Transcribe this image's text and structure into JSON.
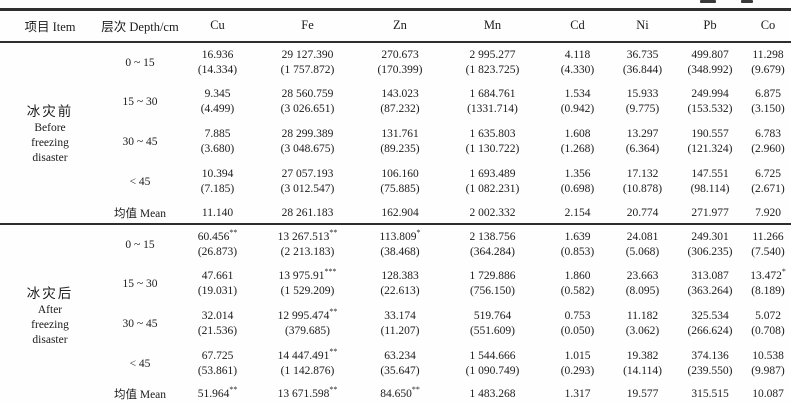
{
  "table": {
    "columns": [
      "项目 Item",
      "层次 Depth/cm",
      "Cu",
      "Fe",
      "Zn",
      "Mn",
      "Cd",
      "Ni",
      "Pb",
      "Co"
    ],
    "groups": [
      {
        "name": [
          "冰灾前",
          "Before",
          "freezing",
          "disaster"
        ],
        "rows": [
          {
            "depth": "0 ~ 15",
            "values": [
              "16.936",
              "29 127.390",
              "270.673",
              "2 995.277",
              "4.118",
              "36.735",
              "499.807",
              "11.298"
            ],
            "sd": [
              "(14.334)",
              "(1 757.872)",
              "(170.399)",
              "(1 823.725)",
              "(4.330)",
              "(36.844)",
              "(348.992)",
              "(9.679)"
            ]
          },
          {
            "depth": "15 ~ 30",
            "values": [
              "9.345",
              "28 560.759",
              "143.023",
              "1 684.761",
              "1.534",
              "15.933",
              "249.994",
              "6.875"
            ],
            "sd": [
              "(4.499)",
              "(3 026.651)",
              "(87.232)",
              "(1331.714)",
              "(0.942)",
              "(9.775)",
              "(153.532)",
              "(3.150)"
            ]
          },
          {
            "depth": "30 ~ 45",
            "values": [
              "7.885",
              "28 299.389",
              "131.761",
              "1 635.803",
              "1.608",
              "13.297",
              "190.557",
              "6.783"
            ],
            "sd": [
              "(3.680)",
              "(3 048.675)",
              "(89.235)",
              "(1 130.722)",
              "(1.268)",
              "(6.364)",
              "(121.324)",
              "(2.960)"
            ]
          },
          {
            "depth": "< 45",
            "values": [
              "10.394",
              "27 057.193",
              "106.160",
              "1 693.489",
              "1.356",
              "17.132",
              "147.551",
              "6.725"
            ],
            "sd": [
              "(7.185)",
              "(3 012.547)",
              "(75.885)",
              "(1 082.231)",
              "(0.698)",
              "(10.878)",
              "(98.114)",
              "(2.671)"
            ]
          }
        ],
        "mean": {
          "label": "均值 Mean",
          "values": [
            "11.140",
            "28 261.183",
            "162.904",
            "2 002.332",
            "2.154",
            "20.774",
            "271.977",
            "7.920"
          ]
        }
      },
      {
        "name": [
          "冰灾后",
          "After",
          "freezing",
          "disaster"
        ],
        "rows": [
          {
            "depth": "0 ~ 15",
            "values": [
              "60.456**",
              "13 267.513**",
              "113.809*",
              "2 138.756",
              "1.639",
              "24.081",
              "249.301",
              "11.266"
            ],
            "sd": [
              "(26.873)",
              "(2 213.183)",
              "(38.468)",
              "(364.284)",
              "(0.853)",
              "(5.068)",
              "(306.235)",
              "(7.540)"
            ]
          },
          {
            "depth": "15 ~ 30",
            "values": [
              "47.661",
              "13 975.91***",
              "128.383",
              "1 729.886",
              "1.860",
              "23.663",
              "313.087",
              "13.472*"
            ],
            "sd": [
              "(19.031)",
              "(1 529.209)",
              "(22.613)",
              "(756.150)",
              "(0.582)",
              "(8.095)",
              "(363.264)",
              "(8.189)"
            ]
          },
          {
            "depth": "30 ~ 45",
            "values": [
              "32.014",
              "12 995.474**",
              "33.174",
              "519.764",
              "0.753",
              "11.182",
              "325.534",
              "5.072"
            ],
            "sd": [
              "(21.536)",
              "(379.685)",
              "(11.207)",
              "(551.609)",
              "(0.050)",
              "(3.062)",
              "(266.624)",
              "(0.708)"
            ]
          },
          {
            "depth": "< 45",
            "values": [
              "67.725",
              "14 447.491**",
              "63.234",
              "1 544.666",
              "1.015",
              "19.382",
              "374.136",
              "10.538"
            ],
            "sd": [
              "(53.861)",
              "(1 142.876)",
              "(35.647)",
              "(1 090.749)",
              "(0.293)",
              "(14.114)",
              "(239.550)",
              "(9.987)"
            ]
          }
        ],
        "mean": {
          "label": "均值 Mean",
          "values": [
            "51.964**",
            "13 671.598**",
            "84.650**",
            "1 483.268",
            "1.317",
            "19.577",
            "315.515",
            "10.087"
          ]
        }
      }
    ]
  }
}
